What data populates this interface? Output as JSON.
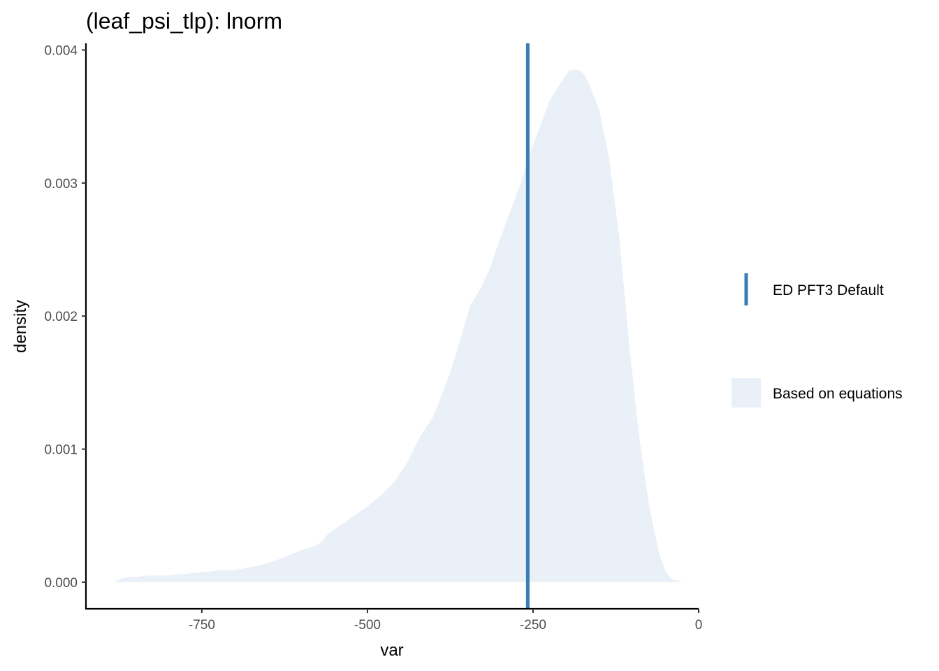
{
  "chart_data": {
    "type": "area",
    "title": "(leaf_psi_tlp): lnorm",
    "xlabel": "var",
    "ylabel": "density",
    "xlim": [
      -925,
      0
    ],
    "ylim": [
      -0.0002,
      0.00405
    ],
    "x_ticks": [
      -750,
      -500,
      -250,
      0
    ],
    "x_tick_labels": [
      "-750",
      "-500",
      "-250",
      "0"
    ],
    "y_ticks": [
      0,
      0.001,
      0.002,
      0.003,
      0.004
    ],
    "y_tick_labels": [
      "0.000",
      "0.001",
      "0.002",
      "0.003",
      "0.004"
    ],
    "grid": false,
    "legend_position": "right",
    "series": [
      {
        "name": "Based on equations",
        "kind": "density_area",
        "color": "#eaf0f7",
        "x": [
          -883,
          -870,
          -850,
          -830,
          -800,
          -780,
          -760,
          -740,
          -720,
          -700,
          -680,
          -660,
          -640,
          -620,
          -600,
          -580,
          -570,
          -560,
          -540,
          -520,
          -500,
          -480,
          -460,
          -440,
          -420,
          -400,
          -390,
          -375,
          -360,
          -345,
          -330,
          -315,
          -300,
          -285,
          -270,
          -255,
          -240,
          -225,
          -210,
          -195,
          -180,
          -172,
          -165,
          -150,
          -135,
          -120,
          -105,
          -90,
          -75,
          -60,
          -50,
          -40,
          -30,
          -25
        ],
        "y": [
          0,
          3e-05,
          4e-05,
          5e-05,
          5e-05,
          6e-05,
          7e-05,
          8e-05,
          9e-05,
          9e-05,
          0.00011,
          0.00013,
          0.00016,
          0.0002,
          0.00024,
          0.00027,
          0.0003,
          0.00036,
          0.00043,
          0.0005,
          0.00057,
          0.00065,
          0.00075,
          0.0009,
          0.0011,
          0.00125,
          0.00138,
          0.00158,
          0.00182,
          0.00208,
          0.0022,
          0.00236,
          0.00258,
          0.00278,
          0.00298,
          0.00322,
          0.00342,
          0.00362,
          0.00374,
          0.00385,
          0.00385,
          0.00381,
          0.00374,
          0.00355,
          0.00318,
          0.0026,
          0.0018,
          0.0011,
          0.00058,
          0.00022,
          8e-05,
          2e-05,
          1e-05,
          0
        ]
      },
      {
        "name": "ED PFT3 Default",
        "kind": "vline",
        "color": "#3a7cb5",
        "x_value": -258
      }
    ]
  }
}
